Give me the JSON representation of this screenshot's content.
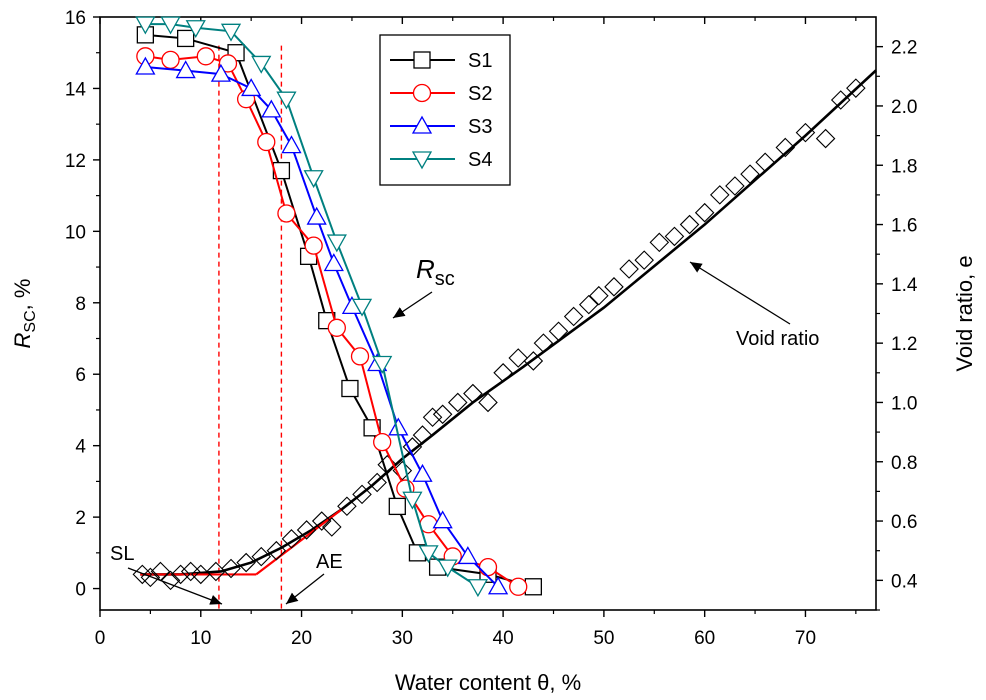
{
  "chart_data": {
    "type": "line",
    "xlabel": "Water content θ, %",
    "ylabel_left_main": "R",
    "ylabel_left_sub": "SC",
    "ylabel_left_unit": ", %",
    "ylabel_right": "Void ratio, e",
    "xlim": [
      0,
      77
    ],
    "ylim_left": [
      -0.6,
      16
    ],
    "ylim_right": [
      0.3,
      2.3
    ],
    "xticks": [
      0,
      10,
      20,
      30,
      40,
      50,
      60,
      70
    ],
    "yticks_left": [
      0,
      2,
      4,
      6,
      8,
      10,
      12,
      14,
      16
    ],
    "yticks_right": [
      0.4,
      0.6,
      0.8,
      1.0,
      1.2,
      1.4,
      1.6,
      1.8,
      2.0,
      2.2
    ],
    "legend_position": "top-center",
    "series": [
      {
        "name": "S1",
        "color": "#000000",
        "marker": "square",
        "axis": "left",
        "x": [
          4.5,
          8.5,
          13.5,
          18,
          20.7,
          22.5,
          24.8,
          27,
          29.5,
          31.5,
          33.5,
          38.5,
          43
        ],
        "y": [
          15.5,
          15.4,
          15.0,
          11.7,
          9.3,
          7.5,
          5.6,
          4.5,
          2.3,
          1.0,
          0.6,
          0.4,
          0.05
        ]
      },
      {
        "name": "S2",
        "color": "#ff0000",
        "marker": "circle",
        "axis": "left",
        "x": [
          4.5,
          7,
          10.5,
          12.7,
          14.5,
          16.5,
          18.5,
          21.2,
          23.5,
          25.8,
          28,
          30.3,
          32.6,
          35,
          38.5,
          41.5
        ],
        "y": [
          14.9,
          14.8,
          14.9,
          14.7,
          13.7,
          12.5,
          10.5,
          9.6,
          7.3,
          6.5,
          4.1,
          2.8,
          1.8,
          0.9,
          0.6,
          0.05
        ]
      },
      {
        "name": "S3",
        "color": "#0000ff",
        "marker": "triangle-up",
        "axis": "left",
        "x": [
          4.5,
          8.5,
          12,
          15,
          17,
          19,
          21.5,
          23.2,
          25,
          27.5,
          29.6,
          32,
          34,
          36.5,
          39.5
        ],
        "y": [
          14.6,
          14.5,
          14.4,
          14.0,
          13.4,
          12.4,
          10.4,
          9.1,
          7.9,
          6.3,
          4.5,
          3.2,
          1.9,
          0.9,
          0.05
        ]
      },
      {
        "name": "S4",
        "color": "#008080",
        "marker": "triangle-down",
        "axis": "left",
        "x": [
          4.5,
          7,
          9.5,
          13,
          16,
          18.5,
          21.2,
          23.5,
          26,
          28,
          31,
          32.6,
          34.5,
          37.5
        ],
        "y": [
          15.8,
          15.8,
          15.7,
          15.6,
          14.7,
          13.7,
          11.5,
          9.7,
          7.9,
          6.3,
          2.5,
          1.0,
          0.6,
          0.05
        ]
      }
    ],
    "void_ratio_points": {
      "name": "Void ratio",
      "marker": "diamond",
      "axis": "right",
      "x": [
        4.2,
        5,
        6,
        7,
        8,
        9,
        10,
        11.5,
        13,
        14.5,
        16,
        17.5,
        19,
        20.5,
        22,
        23,
        24.5,
        26,
        27.5,
        28.5,
        30,
        31,
        32,
        33,
        34,
        35.5,
        37,
        38.5,
        40,
        41.5,
        43,
        44,
        45.5,
        47,
        48.5,
        49.5,
        51,
        52.5,
        54,
        55.5,
        57,
        58.5,
        60,
        61.5,
        63,
        64.5,
        66,
        68,
        70,
        72,
        73.5,
        75
      ],
      "y": [
        0.42,
        0.41,
        0.43,
        0.4,
        0.42,
        0.43,
        0.42,
        0.43,
        0.44,
        0.46,
        0.48,
        0.5,
        0.54,
        0.57,
        0.6,
        0.58,
        0.65,
        0.69,
        0.73,
        0.79,
        0.77,
        0.85,
        0.89,
        0.95,
        0.96,
        1.0,
        1.03,
        1.0,
        1.1,
        1.15,
        1.14,
        1.2,
        1.24,
        1.29,
        1.33,
        1.36,
        1.39,
        1.45,
        1.48,
        1.54,
        1.56,
        1.6,
        1.64,
        1.7,
        1.73,
        1.77,
        1.81,
        1.86,
        1.91,
        1.89,
        2.02,
        2.06
      ]
    },
    "void_ratio_fit": {
      "color": "#000000",
      "axis": "right",
      "x": [
        4,
        8,
        12,
        15,
        18,
        21,
        24,
        27,
        30,
        33,
        37,
        42,
        50,
        60,
        70,
        77
      ],
      "y": [
        0.42,
        0.42,
        0.43,
        0.46,
        0.51,
        0.57,
        0.64,
        0.72,
        0.81,
        0.89,
        1.0,
        1.12,
        1.32,
        1.6,
        1.9,
        2.12
      ]
    },
    "red_fit_segments": [
      {
        "x": [
          4,
          15.5
        ],
        "y": [
          0.42,
          0.42
        ]
      },
      {
        "x": [
          15.5,
          24
        ],
        "y": [
          0.42,
          0.64
        ]
      }
    ],
    "vertical_lines": [
      {
        "x": 11.8,
        "color": "#ff0000",
        "label": "SL"
      },
      {
        "x": 18,
        "color": "#ff0000",
        "label": "AE"
      }
    ],
    "annotations": [
      {
        "text": "SL",
        "name": "sl-label"
      },
      {
        "text": "AE",
        "name": "ae-label"
      },
      {
        "text": "Void ratio",
        "name": "void-ratio-label"
      },
      {
        "text_main": "R",
        "text_sub": "sc",
        "name": "rsc-label"
      }
    ]
  }
}
